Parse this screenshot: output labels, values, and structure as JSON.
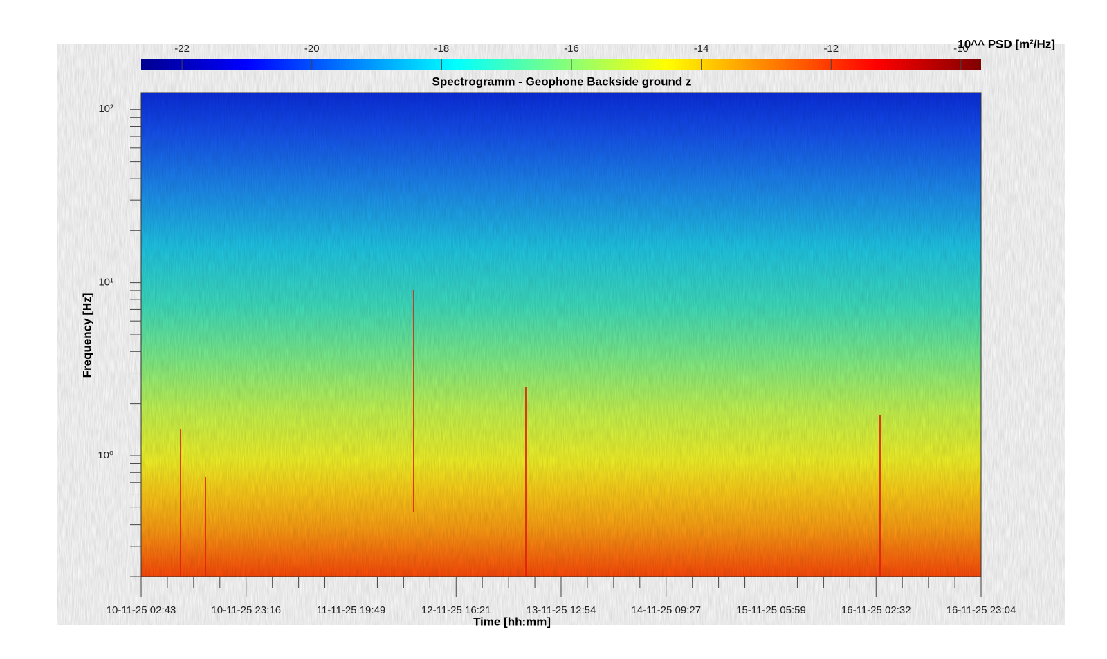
{
  "chart_data": {
    "type": "spectrogram",
    "title": "Spectrogramm - Geophone Backside ground z",
    "xlabel": "Time [hh:mm]",
    "ylabel": "Frequency [Hz]",
    "colorbar_label": "10^^ PSD [m²/Hz]",
    "colormap": "jet",
    "clim": [
      -22.63,
      -9.69
    ],
    "cticks": [
      -22,
      -20,
      -18,
      -16,
      -14,
      -12,
      -10
    ],
    "yscale": "log",
    "ylim": [
      0.2,
      125
    ],
    "yticks": [
      {
        "value": 1,
        "label": "10⁰"
      },
      {
        "value": 10,
        "label": "10¹"
      },
      {
        "value": 100,
        "label": "10²"
      }
    ],
    "yminorticks": [
      0.2,
      0.3,
      0.4,
      0.5,
      0.6,
      0.7,
      0.8,
      0.9,
      2,
      3,
      4,
      5,
      6,
      7,
      8,
      9,
      20,
      30,
      40,
      50,
      60,
      70,
      80,
      90
    ],
    "xticks": [
      "10-11-25 02:43",
      "10-11-25 23:16",
      "11-11-25 19:49",
      "12-11-25 16:21",
      "13-11-25 12:54",
      "14-11-25 09:27",
      "15-11-25 05:59",
      "16-11-25 02:32",
      "16-11-25 23:04"
    ]
  }
}
